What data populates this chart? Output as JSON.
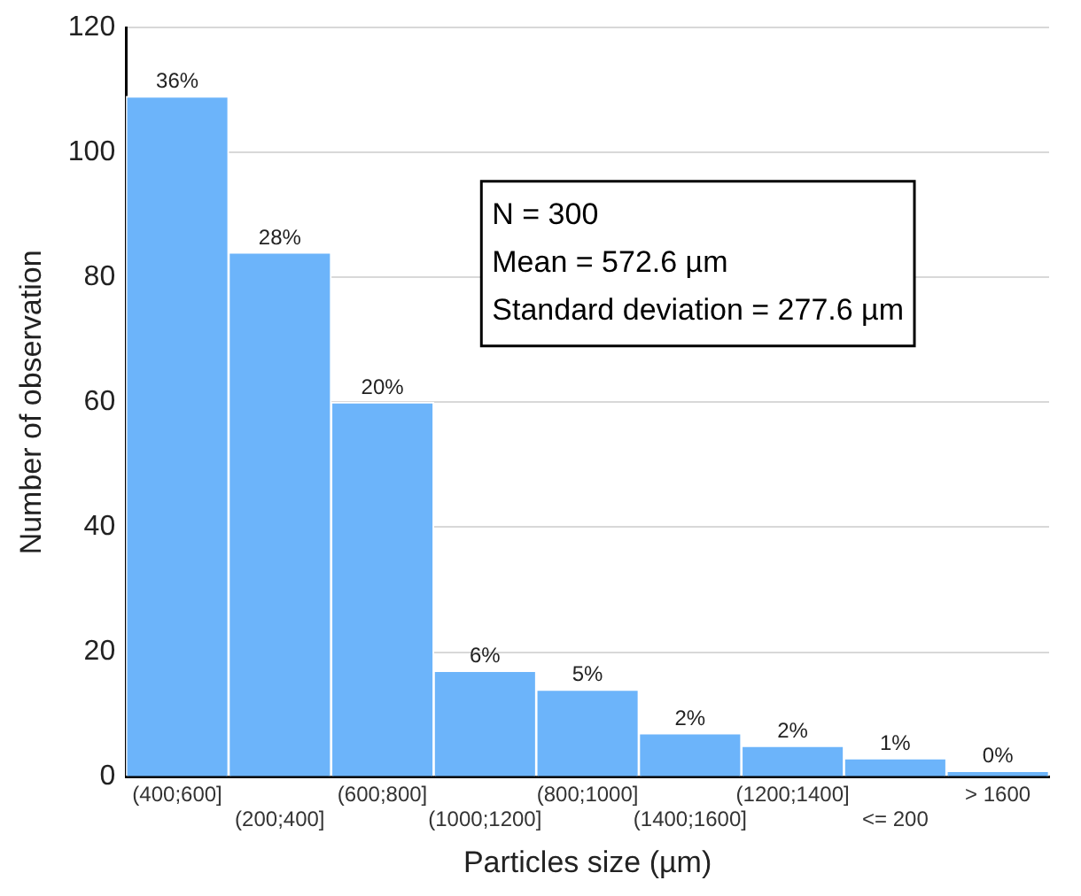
{
  "chart_data": {
    "type": "bar",
    "xlabel": "Particles size (µm)",
    "ylabel": "Number of observation",
    "categories": [
      "(400;600]",
      "(200;400]",
      "(600;800]",
      "(1000;1200]",
      "(800;1000]",
      "(1400;1600]",
      "(1200;1400]",
      "<= 200",
      "> 1600"
    ],
    "values": [
      109,
      84,
      60,
      17,
      14,
      7,
      5,
      3,
      1
    ],
    "color": "#6cb4fa",
    "ylim": [
      0,
      120
    ],
    "yticks": [
      0,
      20,
      40,
      60,
      80,
      100,
      120
    ],
    "grid": "y",
    "annotations": [
      "N = 300",
      "Mean = 572.6 µm",
      "Standard deviation = 277.6 µm",
      {
        "text": "36%",
        "x": "(400;600]",
        "y": 109
      },
      {
        "text": "28%",
        "x": "(200;400]",
        "y": 84
      },
      {
        "text": "20%",
        "x": "(600;800]",
        "y": 60
      },
      {
        "text": "6%",
        "x": "(1000;1200]",
        "y": 17
      },
      {
        "text": "5%",
        "x": "(800;1000]",
        "y": 14
      },
      {
        "text": "2%",
        "x": "(1400;1600]",
        "y": 7
      },
      {
        "text": "2%",
        "x": "(1200;1400]",
        "y": 5
      },
      {
        "text": "1%",
        "x": "<= 200",
        "y": 3
      },
      {
        "text": "0%",
        "x": "> 1600",
        "y": 1
      }
    ]
  }
}
